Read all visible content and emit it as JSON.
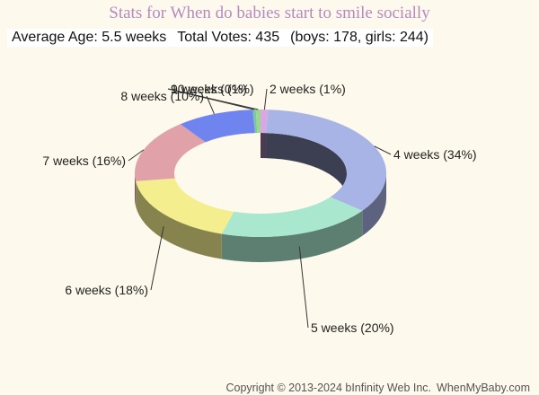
{
  "title": "Stats for When do babies start to smile socially",
  "stats": {
    "average": "Average Age: 5.5 weeks",
    "total": "Total Votes: 435",
    "breakdown": "(boys: 178, girls: 244)"
  },
  "footer": {
    "copyright": "Copyright © 2013-2024 bInfinity Web Inc.",
    "site": "WhenMyBaby.com"
  },
  "chart_data": {
    "type": "pie",
    "style": "3d-donut",
    "series": [
      {
        "label": "2 weeks (1%)",
        "value": 1,
        "color": "#d8a8e4"
      },
      {
        "label": "4 weeks (34%)",
        "value": 34,
        "color": "#a9b4e6"
      },
      {
        "label": "5 weeks (20%)",
        "value": 20,
        "color": "#a9e7cf"
      },
      {
        "label": "6 weeks (18%)",
        "value": 18,
        "color": "#f4ee8e"
      },
      {
        "label": "7 weeks (16%)",
        "value": 16,
        "color": "#e0a1a9"
      },
      {
        "label": "8 weeks (10%)",
        "value": 10,
        "color": "#6f84ee"
      },
      {
        "label": "9 weeks (0%)",
        "value": 0.4,
        "color": "#7bc7a4"
      },
      {
        "label": "10 weeks (1%)",
        "value": 0.6,
        "color": "#9ed68e"
      }
    ]
  }
}
